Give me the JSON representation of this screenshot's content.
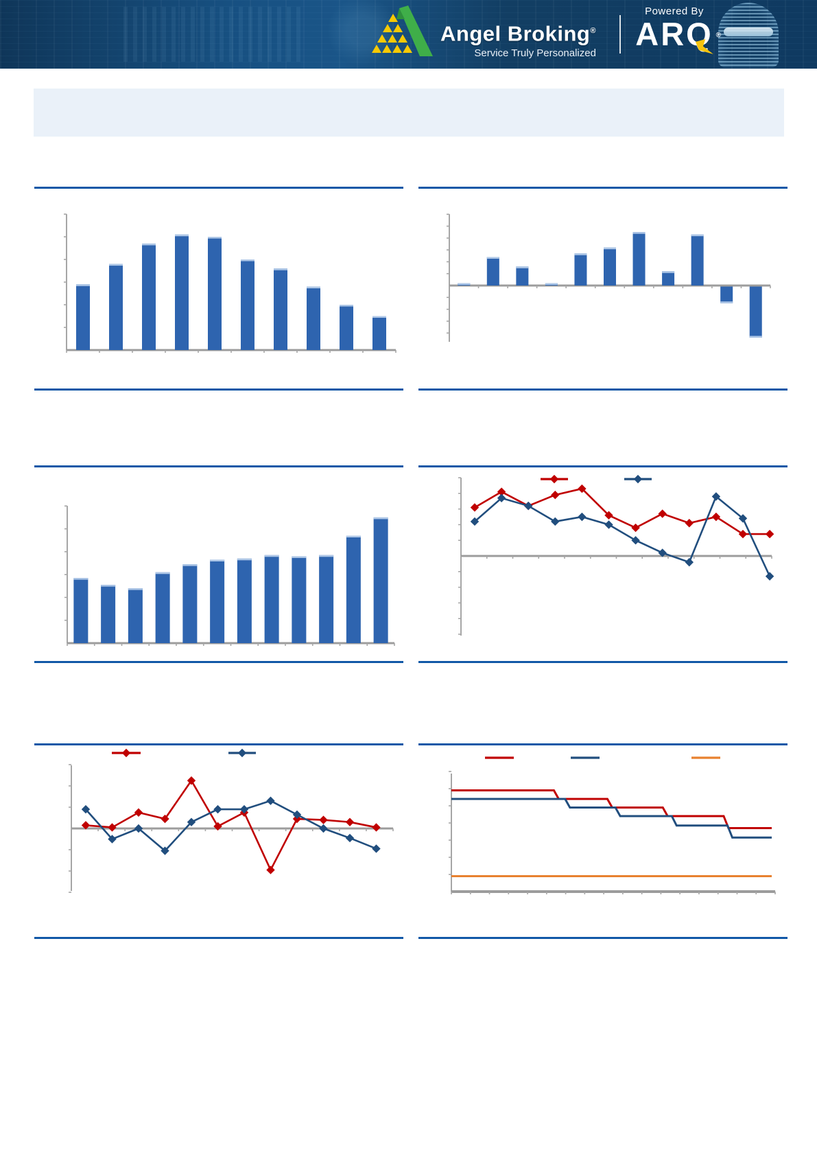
{
  "header": {
    "brand_name": "Angel Broking",
    "brand_registered": "®",
    "tagline": "Service Truly Personalized",
    "powered_by": "Powered By",
    "arq_name": "ARQ",
    "arq_registered": "®",
    "colors": {
      "header_bg": "#123E63",
      "logo_green": "#3FAE49",
      "logo_yellow": "#F7C903"
    }
  },
  "banner": {
    "bg_color": "#EAF1F9"
  },
  "divider_color": "#1158A7",
  "chart_data": [
    {
      "id": "bar-rise-fall",
      "type": "bar",
      "title": "",
      "xlabel": "",
      "ylabel": "",
      "categories": [
        "",
        "",
        "",
        "",
        "",
        "",
        "",
        "",
        "",
        ""
      ],
      "values": [
        2.9,
        3.8,
        4.7,
        5.1,
        5.0,
        4.0,
        3.6,
        2.8,
        2.0,
        1.5
      ],
      "ylim": [
        0,
        6
      ],
      "y_tick_interval": 1,
      "grid": false,
      "bar_color": "#2E64AF",
      "bar_highlight": "#AEC7E7",
      "axis_color": "#A6A6A6"
    },
    {
      "id": "bar-positive-negative",
      "type": "bar",
      "title": "",
      "xlabel": "",
      "ylabel": "",
      "categories": [
        "",
        "",
        "",
        "",
        "",
        "",
        "",
        "",
        "",
        "",
        ""
      ],
      "values": [
        0.2,
        2.4,
        1.6,
        0.2,
        2.7,
        3.2,
        4.5,
        1.2,
        4.3,
        -1.4,
        -4.3
      ],
      "ylim": [
        -4.7,
        6
      ],
      "y_tick_interval": 1,
      "grid": false,
      "bar_color": "#2E64AF",
      "bar_highlight": "#AEC7E7",
      "axis_color": "#A6A6A6"
    },
    {
      "id": "bar-uptrend",
      "type": "bar",
      "title": "",
      "xlabel": "",
      "ylabel": "",
      "categories": [
        "",
        "",
        "",
        "",
        "",
        "",
        "",
        "",
        "",
        "",
        "",
        ""
      ],
      "values": [
        2.85,
        2.55,
        2.4,
        3.1,
        3.45,
        3.65,
        3.7,
        3.85,
        3.8,
        3.85,
        4.7,
        5.5
      ],
      "ylim": [
        0,
        6
      ],
      "y_tick_interval": 1,
      "grid": false,
      "bar_color": "#2E64AF",
      "bar_highlight": "#AEC7E7",
      "axis_color": "#A6A6A6"
    },
    {
      "id": "line-two-series-trending-down",
      "type": "line",
      "title": "",
      "xlabel": "",
      "ylabel": "",
      "x": [
        "",
        "",
        "",
        "",
        "",
        "",
        "",
        "",
        "",
        "",
        "",
        ""
      ],
      "series": [
        {
          "name": "",
          "color": "#C00000",
          "marker": "diamond",
          "values": [
            3.1,
            4.1,
            3.2,
            3.9,
            4.3,
            2.6,
            1.8,
            2.7,
            2.1,
            2.5,
            1.4,
            1.4
          ]
        },
        {
          "name": "",
          "color": "#214E7E",
          "marker": "diamond",
          "values": [
            2.2,
            3.7,
            3.2,
            2.2,
            2.5,
            2.0,
            1.0,
            0.2,
            -0.4,
            3.8,
            2.4,
            -1.3
          ]
        }
      ],
      "ylim": [
        -5,
        5
      ],
      "y_tick_interval": 1,
      "grid": false,
      "legend_position": "top",
      "axis_color": "#A6A6A6"
    },
    {
      "id": "line-two-series-volatile",
      "type": "line",
      "title": "",
      "xlabel": "",
      "ylabel": "",
      "x": [
        "",
        "",
        "",
        "",
        "",
        "",
        "",
        "",
        "",
        "",
        "",
        ""
      ],
      "series": [
        {
          "name": "",
          "color": "#C00000",
          "marker": "diamond",
          "values": [
            0.15,
            0.05,
            0.75,
            0.45,
            2.25,
            0.1,
            0.75,
            -1.95,
            0.45,
            0.4,
            0.3,
            0.05
          ]
        },
        {
          "name": "",
          "color": "#214E7E",
          "marker": "diamond",
          "values": [
            0.9,
            -0.5,
            0.0,
            -1.05,
            0.3,
            0.9,
            0.9,
            1.3,
            0.65,
            0.0,
            -0.45,
            -0.95
          ]
        }
      ],
      "ylim": [
        -3,
        3
      ],
      "y_tick_interval": 1,
      "grid": false,
      "legend_position": "top",
      "axis_color": "#A6A6A6"
    },
    {
      "id": "step-three-series-policy-rates",
      "type": "line",
      "subtype": "step",
      "title": "",
      "xlabel": "",
      "ylabel": "",
      "series": [
        {
          "name": "",
          "color": "#C00000",
          "points": [
            [
              0,
              5.9
            ],
            [
              0.32,
              5.9
            ],
            [
              0.335,
              5.4
            ],
            [
              0.487,
              5.4
            ],
            [
              0.502,
              4.9
            ],
            [
              0.66,
              4.9
            ],
            [
              0.675,
              4.4
            ],
            [
              0.85,
              4.4
            ],
            [
              0.865,
              3.7
            ],
            [
              1,
              3.7
            ]
          ]
        },
        {
          "name": "",
          "color": "#214E7E",
          "points": [
            [
              0,
              5.4
            ],
            [
              0.355,
              5.4
            ],
            [
              0.37,
              4.9
            ],
            [
              0.512,
              4.9
            ],
            [
              0.527,
              4.4
            ],
            [
              0.688,
              4.4
            ],
            [
              0.703,
              3.85
            ],
            [
              0.862,
              3.85
            ],
            [
              0.877,
              3.15
            ],
            [
              1,
              3.15
            ]
          ]
        },
        {
          "name": "",
          "color": "#E8812F",
          "points": [
            [
              0,
              0.9
            ],
            [
              1,
              0.9
            ]
          ]
        }
      ],
      "ylim": [
        0,
        6.9
      ],
      "y_tick_interval": 1,
      "grid": false,
      "legend_position": "top",
      "axis_color": "#A6A6A6"
    }
  ]
}
